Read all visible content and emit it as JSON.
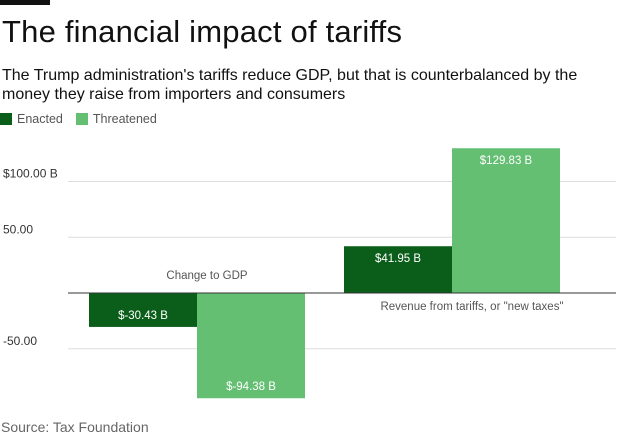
{
  "header": {
    "title": "The financial impact of tariffs",
    "subtitle": "The Trump administration's tariffs reduce GDP, but that is counterbalanced by the money they raise from importers and consumers"
  },
  "footer": {
    "source": "Source: Tax Foundation"
  },
  "colors": {
    "enacted": "#0b5e1a",
    "threatened": "#64bf72",
    "grid": "#dddddd",
    "axis": "#333333"
  },
  "chart_data": {
    "type": "bar",
    "title": "The financial impact of tariffs",
    "categories": [
      "Change to GDP",
      "Revenue from tariffs, or \"new taxes\""
    ],
    "series": [
      {
        "name": "Enacted",
        "values": [
          -30.43,
          41.95
        ],
        "labels": [
          "$-30.43 B",
          "$41.95 B"
        ]
      },
      {
        "name": "Threatened",
        "values": [
          -94.38,
          129.83
        ],
        "labels": [
          "$-94.38 B",
          "$129.83 B"
        ]
      }
    ],
    "yticks": [
      100,
      50,
      -50
    ],
    "ytick_labels": [
      "$100.00 B",
      "50.00",
      "-50.00"
    ],
    "ylim": [
      -95,
      130
    ],
    "xlabel": "",
    "ylabel": "",
    "legend": "top-left"
  }
}
